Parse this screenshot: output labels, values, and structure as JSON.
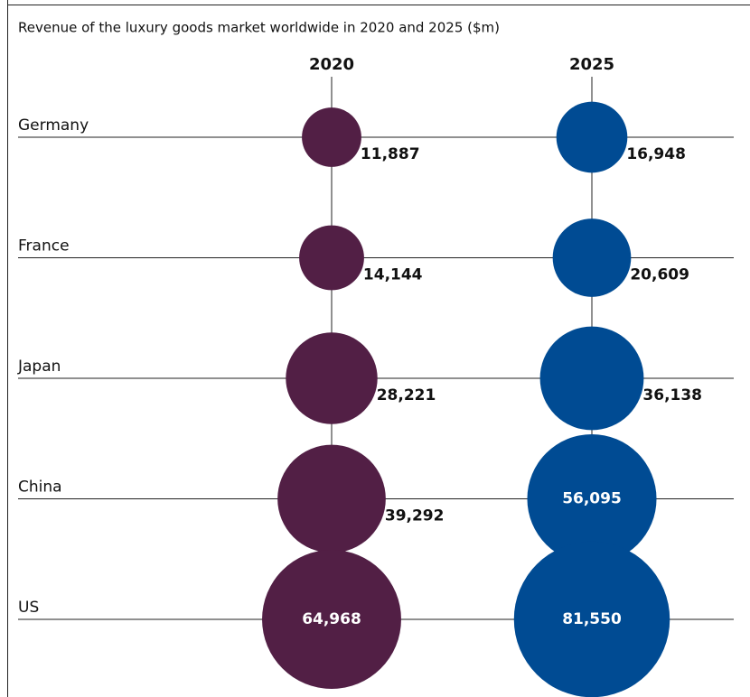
{
  "chart_data": {
    "type": "bubble",
    "title": "Revenue of the luxury goods market worldwide in 2020 and 2025 ($m)",
    "categories": [
      "Germany",
      "France",
      "Japan",
      "China",
      "US"
    ],
    "series": [
      {
        "name": "2020",
        "color": "#521f45",
        "values": [
          11887,
          14144,
          28221,
          39292,
          64968
        ],
        "value_labels": [
          "11,887",
          "14,144",
          "28,221",
          "39,292",
          "64,968"
        ]
      },
      {
        "name": "2025",
        "color": "#004b93",
        "values": [
          16948,
          20609,
          36138,
          56095,
          81550
        ],
        "value_labels": [
          "16,948",
          "20,609",
          "36,138",
          "56,095",
          "81,550"
        ]
      }
    ]
  }
}
